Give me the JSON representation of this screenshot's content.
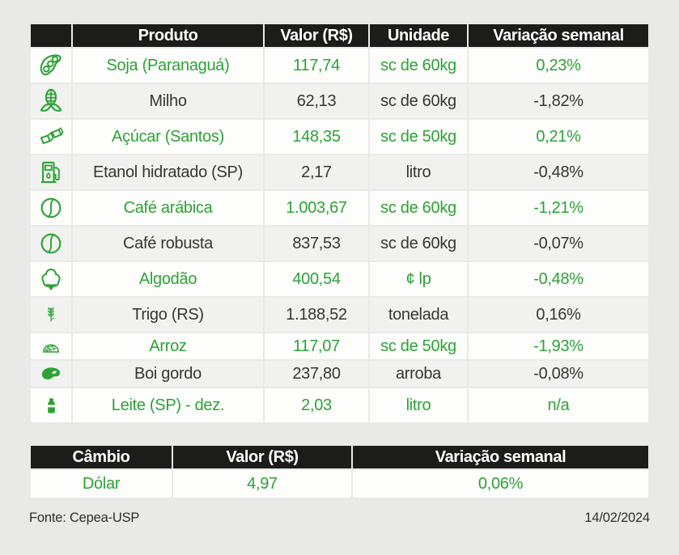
{
  "colors": {
    "accent_green": "#2ca235",
    "header_bg": "#1c1c1a",
    "row_light": "#fdfdfc",
    "row_gray": "#f1f1ef",
    "page_bg": "#e9e9e7",
    "dark_text": "#363634"
  },
  "chart_data": [
    {
      "type": "table",
      "columns": [
        "Produto",
        "Valor (R$)",
        "Unidade",
        "Variação semanal"
      ],
      "rows": [
        {
          "icon": "soybean-icon",
          "cells": [
            "Soja (Paranaguá)",
            "117,74",
            "sc de 60kg",
            "0,23%"
          ]
        },
        {
          "icon": "corn-icon",
          "cells": [
            "Milho",
            "62,13",
            "sc de 60kg",
            "-1,82%"
          ]
        },
        {
          "icon": "sugar-cubes-icon",
          "cells": [
            "Açúcar (Santos)",
            "148,35",
            "sc de 50kg",
            "0,21%"
          ]
        },
        {
          "icon": "fuel-pump-icon",
          "cells": [
            "Etanol hidratado (SP)",
            "2,17",
            "litro",
            "-0,48%"
          ]
        },
        {
          "icon": "coffee-bean-icon",
          "cells": [
            "Café arábica",
            "1.003,67",
            "sc de 60kg",
            "-1,21%"
          ]
        },
        {
          "icon": "coffee-bean-icon",
          "cells": [
            "Café robusta",
            "837,53",
            "sc de 60kg",
            "-0,07%"
          ]
        },
        {
          "icon": "cotton-icon",
          "cells": [
            "Algodão",
            "400,54",
            "¢ lp",
            "-0,48%"
          ]
        },
        {
          "icon": "wheat-icon",
          "cells": [
            "Trigo (RS)",
            "1.188,52",
            "tonelada",
            "0,16%"
          ]
        },
        {
          "icon": "rice-icon",
          "cells": [
            "Arroz",
            "117,07",
            "sc de 50kg",
            "-1,93%"
          ]
        },
        {
          "icon": "steak-icon",
          "cells": [
            "Boi gordo",
            "237,80",
            "arroba",
            "-0,08%"
          ]
        },
        {
          "icon": "milk-bottle-icon",
          "cells": [
            "Leite (SP) - dez.",
            "2,03",
            "litro",
            "n/a"
          ]
        }
      ]
    },
    {
      "type": "table",
      "columns": [
        "Câmbio",
        "Valor (R$)",
        "Variação semanal"
      ],
      "rows": [
        {
          "icon": null,
          "cells": [
            "Dólar",
            "4,97",
            "0,06%"
          ]
        }
      ]
    }
  ],
  "footer": {
    "source": "Fonte: Cepea-USP",
    "date": "14/02/2024"
  }
}
